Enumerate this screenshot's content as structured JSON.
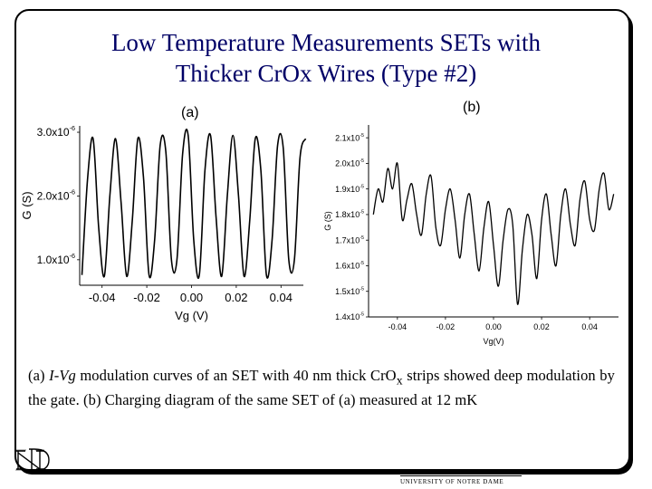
{
  "slide": {
    "title_line1": "Low Temperature Measurements SETs with",
    "title_line2": "Thicker CrOx Wires (Type #2)",
    "label_a": "(a)",
    "label_b": "(b)",
    "caption": {
      "part1": "(a) ",
      "italic": "I-Vg",
      "part2": " modulation curves of an SET with 40 nm thick CrO",
      "subscript": "x",
      "part3": " strips showed deep modulation by the gate. (b) Charging diagram of the same SET of (a) measured at 12 mK"
    },
    "footer": "UNIVERSITY OF NOTRE DAME",
    "logo_icon": "notre-dame-monogram-icon",
    "colors": {
      "title": "#000066",
      "line": "#000000"
    }
  },
  "chart_data": [
    {
      "type": "line",
      "panel": "(a)",
      "xlabel": "Vg (V)",
      "ylabel": "G (S)",
      "xlim": [
        -0.05,
        0.05
      ],
      "ylim": [
        6e-07,
        3.1e-06
      ],
      "x_ticks": [
        -0.04,
        -0.02,
        0.0,
        0.02,
        0.04
      ],
      "x_tick_labels": [
        "-0.04",
        "-0.02",
        "0.00",
        "0.02",
        "0.04"
      ],
      "y_ticks": [
        1e-06,
        2e-06,
        3e-06
      ],
      "y_tick_labels": [
        {
          "mantissa": "1.0x10",
          "exp": "-6"
        },
        {
          "mantissa": "2.0x10",
          "exp": "-6"
        },
        {
          "mantissa": "3.0x10",
          "exp": "-6"
        }
      ],
      "grid": false,
      "series": [
        {
          "x_start": -0.049,
          "x_step": 0.0025,
          "values": [
            7.6e-07,
            2.25e-06,
            2.9e-06,
            1.5e-06,
            7.4e-07,
            2e-06,
            2.9e-06,
            1.9e-06,
            7.4e-07,
            1.6e-06,
            2.9e-06,
            2.3e-06,
            7.6e-07,
            1.3e-06,
            2.8e-06,
            2.7e-06,
            1e-06,
            1e-06,
            2.65e-06,
            2.95e-06,
            1.3e-06,
            7.6e-07,
            2.4e-06,
            2.95e-06,
            1.65e-06,
            7.4e-07,
            2e-06,
            2.95e-06,
            2e-06,
            7.4e-07,
            1.6e-06,
            2.9e-06,
            2.4e-06,
            7.6e-07,
            1.3e-06,
            2.8e-06,
            2.75e-06,
            1e-06,
            1e-06,
            2.6e-06,
            2.9e-06
          ]
        }
      ]
    },
    {
      "type": "line",
      "panel": "(b)",
      "xlabel": "Vg(V)",
      "ylabel": "G (S)",
      "xlim": [
        -0.052,
        0.052
      ],
      "ylim": [
        1.4e-05,
        2.15e-05
      ],
      "x_ticks": [
        -0.04,
        -0.02,
        0.0,
        0.02,
        0.04
      ],
      "x_tick_labels": [
        "-0.04",
        "-0.02",
        "0.00",
        "0.02",
        "0.04"
      ],
      "y_ticks": [
        1.4e-05,
        1.5e-05,
        1.6e-05,
        1.7e-05,
        1.8e-05,
        1.9e-05,
        2e-05,
        2.1e-05
      ],
      "y_tick_labels": [
        {
          "mantissa": "1.4x10",
          "exp": "-5"
        },
        {
          "mantissa": "1.5x10",
          "exp": "-5"
        },
        {
          "mantissa": "1.6x10",
          "exp": "-5"
        },
        {
          "mantissa": "1.7x10",
          "exp": "-5"
        },
        {
          "mantissa": "1.8x10",
          "exp": "-5"
        },
        {
          "mantissa": "1.9x10",
          "exp": "-5"
        },
        {
          "mantissa": "2.0x10",
          "exp": "-5"
        },
        {
          "mantissa": "2.1x10",
          "exp": "-5"
        }
      ],
      "grid": false,
      "series": [
        {
          "x_start": -0.05,
          "x_step": 0.002,
          "values": [
            1.8e-05,
            1.9e-05,
            1.85e-05,
            1.98e-05,
            1.9e-05,
            2e-05,
            1.78e-05,
            1.86e-05,
            1.92e-05,
            1.8e-05,
            1.72e-05,
            1.88e-05,
            1.95e-05,
            1.75e-05,
            1.68e-05,
            1.82e-05,
            1.9e-05,
            1.78e-05,
            1.63e-05,
            1.8e-05,
            1.88e-05,
            1.72e-05,
            1.58e-05,
            1.75e-05,
            1.85e-05,
            1.68e-05,
            1.52e-05,
            1.7e-05,
            1.82e-05,
            1.76e-05,
            1.45e-05,
            1.66e-05,
            1.8e-05,
            1.72e-05,
            1.55e-05,
            1.78e-05,
            1.88e-05,
            1.72e-05,
            1.6e-05,
            1.8e-05,
            1.9e-05,
            1.76e-05,
            1.68e-05,
            1.86e-05,
            1.93e-05,
            1.78e-05,
            1.74e-05,
            1.9e-05,
            1.96e-05,
            1.82e-05,
            1.88e-05
          ]
        }
      ]
    }
  ]
}
